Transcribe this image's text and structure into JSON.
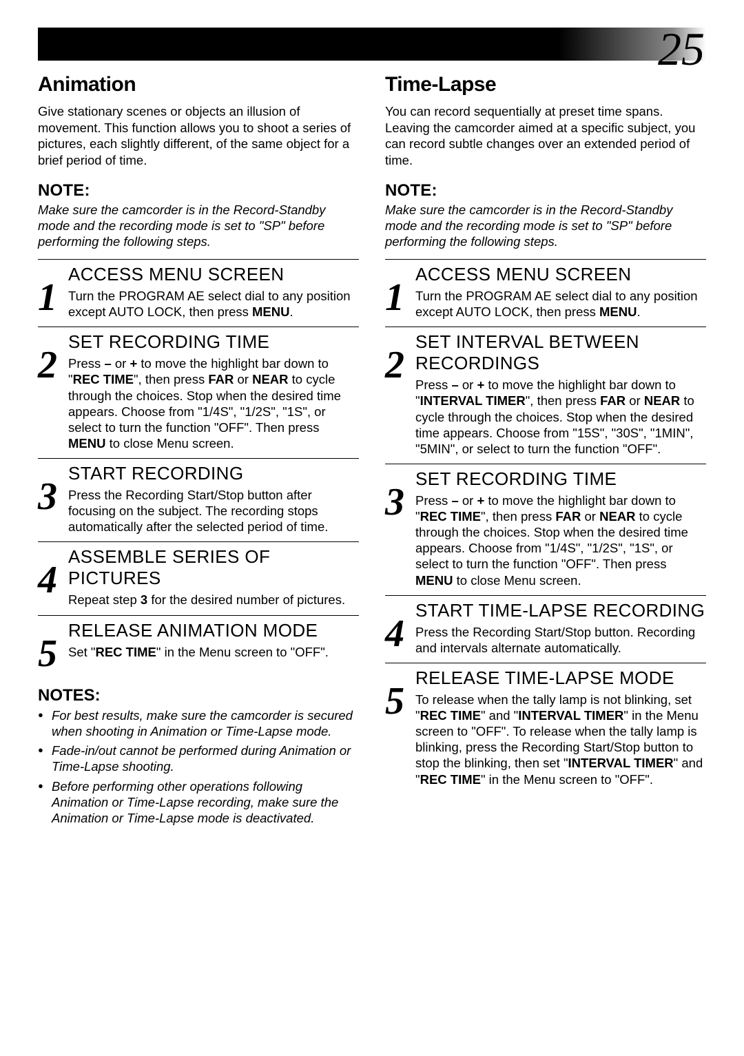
{
  "pageNumber": "25",
  "left": {
    "title": "Animation",
    "intro": "Give stationary scenes or objects an illusion of movement. This function allows you to shoot a series of pictures, each slightly different, of the same object for a brief period of time.",
    "noteHead": "NOTE:",
    "noteBody": "Make sure the camcorder is in the Record-Standby mode and the recording mode is set to \"SP\" before performing the following steps.",
    "steps": [
      {
        "num": "1",
        "title": "ACCESS MENU SCREEN",
        "html": "Turn the PROGRAM AE select dial to any position except AUTO LOCK, then press <b>MENU</b>."
      },
      {
        "num": "2",
        "title": "SET RECORDING TIME",
        "html": "Press <b>–</b> or <b>+</b> to move the highlight bar down to \"<b>REC TIME</b>\",  then press <b>FAR</b> or <b>NEAR</b> to cycle through the choices. Stop when the desired time appears. Choose from \"1/4S\", \"1/2S\", \"1S\", or select to turn the function \"OFF\". Then press <b>MENU</b> to close Menu screen."
      },
      {
        "num": "3",
        "title": "START RECORDING",
        "html": "Press the Recording Start/Stop button after focusing on the subject. The recording stops automatically after the selected period of time."
      },
      {
        "num": "4",
        "title": "ASSEMBLE SERIES OF PICTURES",
        "html": "Repeat step <b>3</b> for the desired number of pictures."
      },
      {
        "num": "5",
        "title": "RELEASE ANIMATION MODE",
        "html": "Set \"<b>REC TIME</b>\" in the Menu screen to \"OFF\"."
      }
    ],
    "notesHead": "NOTES:",
    "notes": [
      "For best results, make sure the camcorder is secured when shooting in Animation or Time-Lapse mode.",
      "Fade-in/out cannot be performed during Animation or Time-Lapse shooting.",
      "Before performing other operations following Animation or Time-Lapse recording, make sure the Animation or Time-Lapse mode is deactivated."
    ]
  },
  "right": {
    "title": "Time-Lapse",
    "intro": "You can record sequentially at preset time spans. Leaving the camcorder aimed at a specific subject, you can record subtle changes over an extended period of time.",
    "noteHead": "NOTE:",
    "noteBody": "Make sure the camcorder is in the Record-Standby mode and the recording mode is set to \"SP\" before performing the following steps.",
    "steps": [
      {
        "num": "1",
        "title": "ACCESS MENU SCREEN",
        "html": "Turn the PROGRAM AE select dial to any position except AUTO LOCK, then press <b>MENU</b>."
      },
      {
        "num": "2",
        "title": "SET INTERVAL BETWEEN RECORDINGS",
        "html": "Press <b>–</b> or <b>+</b> to move the highlight bar down to \"<b>INTERVAL TIMER</b>\", then press <b>FAR</b> or <b>NEAR</b> to cycle through the choices. Stop when the desired time appears. Choose from \"15S\", \"30S\", \"1MIN\", \"5MIN\", or select to turn the function \"OFF\"."
      },
      {
        "num": "3",
        "title": "SET RECORDING TIME",
        "html": "Press <b>–</b> or <b>+</b> to move the highlight bar down to \"<b>REC TIME</b>\", then press <b>FAR</b> or <b>NEAR</b> to cycle through the choices. Stop when the desired time appears. Choose from \"1/4S\", \"1/2S\", \"1S\", or select to turn the function \"OFF\". Then press <b>MENU</b> to close Menu screen."
      },
      {
        "num": "4",
        "title": "START TIME-LAPSE RECORDING",
        "html": "Press the Recording Start/Stop button. Recording and intervals alternate automatically."
      },
      {
        "num": "5",
        "title": "RELEASE TIME-LAPSE MODE",
        "html": "To release when the tally lamp is not blinking, set \"<b>REC TIME</b>\" and \"<b>INTERVAL TIMER</b>\" in the Menu screen to \"OFF\". To release when the tally lamp is blinking, press the Recording Start/Stop button to stop the blinking, then set \"<b>INTERVAL TIMER</b>\" and \"<b>REC TIME</b>\" in the Menu screen to \"OFF\"."
      }
    ]
  }
}
